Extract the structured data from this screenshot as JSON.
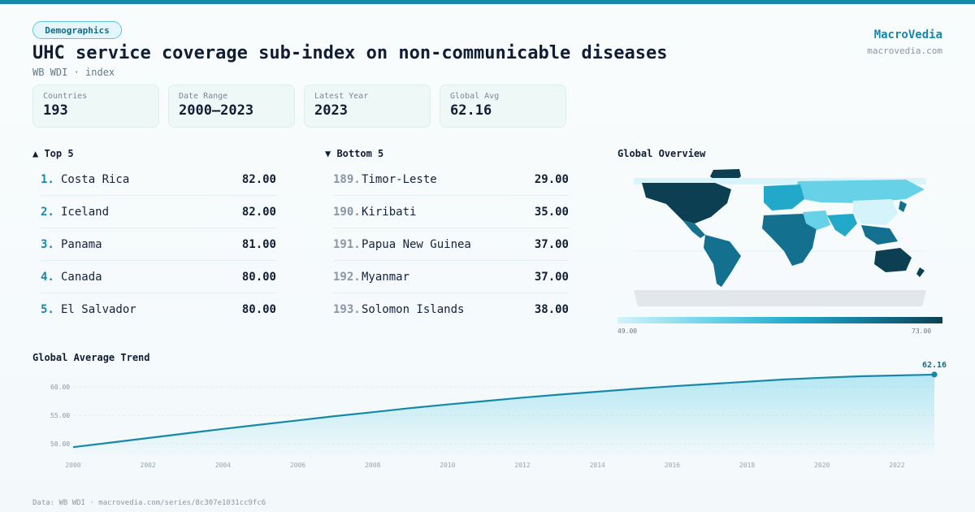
{
  "header": {
    "tag": "Demographics",
    "title": "UHC service coverage sub-index on non-communicable diseases",
    "subtitle": "WB WDI · index",
    "brand": "MacroVedia",
    "brand_url": "macrovedia.com"
  },
  "stats": [
    {
      "label": "Countries",
      "value": "193"
    },
    {
      "label": "Date Range",
      "value": "2000–2023"
    },
    {
      "label": "Latest Year",
      "value": "2023"
    },
    {
      "label": "Global Avg",
      "value": "62.16"
    }
  ],
  "top5": {
    "heading": "▲ Top 5",
    "rows": [
      {
        "rank": "1.",
        "name": "Costa Rica",
        "value": "82.00"
      },
      {
        "rank": "2.",
        "name": "Iceland",
        "value": "82.00"
      },
      {
        "rank": "3.",
        "name": "Panama",
        "value": "81.00"
      },
      {
        "rank": "4.",
        "name": "Canada",
        "value": "80.00"
      },
      {
        "rank": "5.",
        "name": "El Salvador",
        "value": "80.00"
      }
    ]
  },
  "bottom5": {
    "heading": "▼ Bottom 5",
    "rows": [
      {
        "rank": "189.",
        "name": "Timor-Leste",
        "value": "29.00"
      },
      {
        "rank": "190.",
        "name": "Kiribati",
        "value": "35.00"
      },
      {
        "rank": "191.",
        "name": "Papua New Guinea",
        "value": "37.00"
      },
      {
        "rank": "192.",
        "name": "Myanmar",
        "value": "37.00"
      },
      {
        "rank": "193.",
        "name": "Solomon Islands",
        "value": "38.00"
      }
    ]
  },
  "map": {
    "heading": "Global Overview",
    "legend_min": "49.00",
    "legend_max": "73.00",
    "colors": {
      "low": "#d4f3fa",
      "mid": "#22a8c8",
      "high": "#0d3f52",
      "nodata": "#e3e6ea"
    }
  },
  "trend": {
    "heading": "Global Average Trend",
    "line_color": "#1789a8",
    "last_label": "62.16"
  },
  "footer": "Data: WB WDI · macrovedia.com/series/8c307e1031cc9fc6",
  "chart_data": {
    "type": "area",
    "title": "Global Average Trend",
    "x": [
      2000,
      2001,
      2002,
      2003,
      2004,
      2005,
      2006,
      2007,
      2008,
      2009,
      2010,
      2011,
      2012,
      2013,
      2014,
      2015,
      2016,
      2017,
      2018,
      2019,
      2020,
      2021,
      2022,
      2023
    ],
    "series": [
      {
        "values": [
          49.4,
          50.2,
          51.0,
          51.8,
          52.6,
          53.35,
          54.1,
          54.85,
          55.55,
          56.25,
          56.9,
          57.5,
          58.1,
          58.65,
          59.15,
          59.65,
          60.1,
          60.5,
          60.9,
          61.3,
          61.6,
          61.85,
          62.0,
          62.16
        ]
      }
    ],
    "x_ticks": [
      2000,
      2002,
      2004,
      2006,
      2008,
      2010,
      2012,
      2014,
      2016,
      2018,
      2020,
      2022
    ],
    "y_ticks": [
      "50.00",
      "55.00",
      "60.00"
    ],
    "ylim": [
      48,
      63
    ],
    "grid": true,
    "last_value_label": "62.16"
  }
}
